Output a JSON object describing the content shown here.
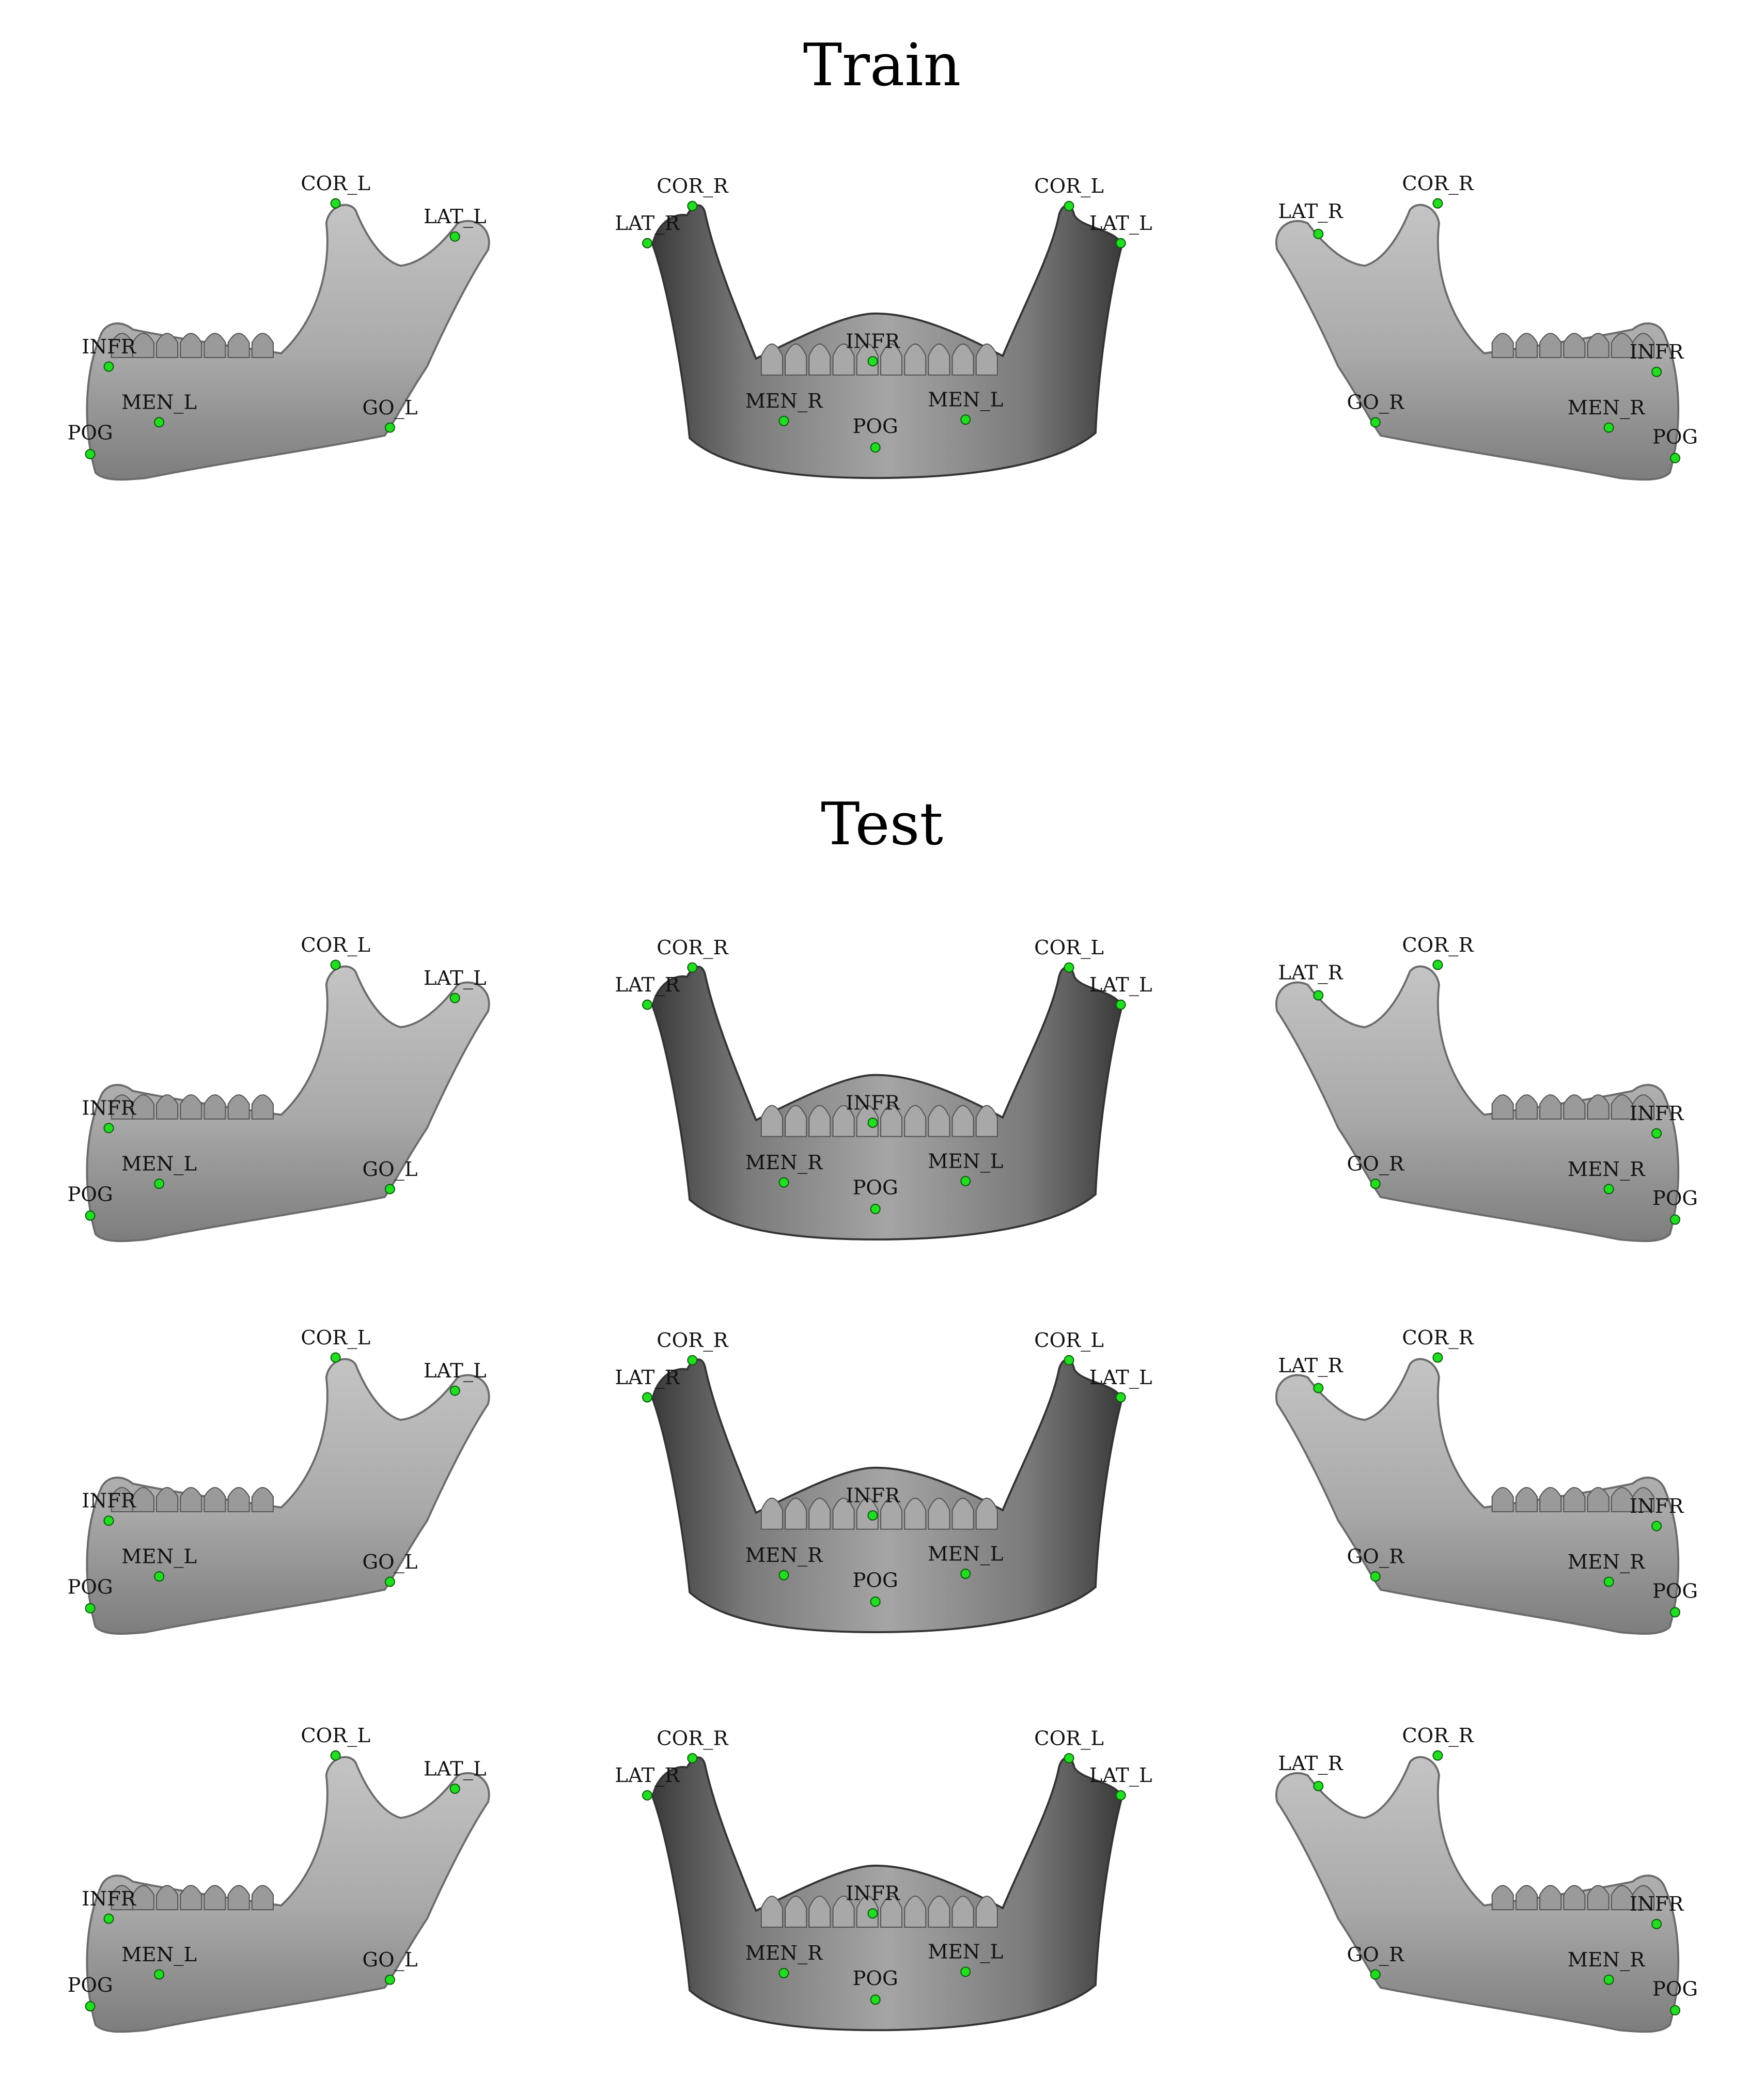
{
  "sections": {
    "train": "Train",
    "test": "Test"
  },
  "colors": {
    "landmark": "#22dd22",
    "bone_light": "#b4b4b4",
    "bone_dark": "#555555",
    "background": "#ffffff"
  },
  "views": [
    "left-lateral",
    "frontal",
    "right-lateral"
  ],
  "landmark_labels": {
    "left": [
      "COR_L",
      "LAT_L",
      "INFR",
      "MEN_L",
      "POG",
      "GO_L"
    ],
    "front": [
      "COR_R",
      "COR_L",
      "LAT_R",
      "LAT_L",
      "INFR",
      "MEN_R",
      "MEN_L",
      "POG"
    ],
    "right": [
      "COR_R",
      "LAT_R",
      "INFR",
      "GO_R",
      "MEN_R",
      "POG"
    ]
  }
}
